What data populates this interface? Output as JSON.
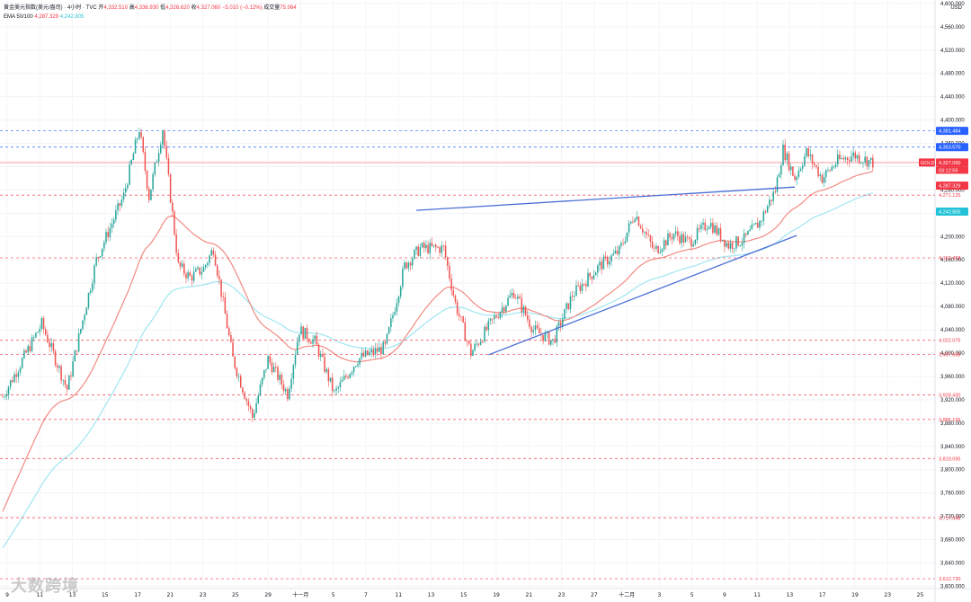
{
  "legend": {
    "instrument": "黄金美元指数(美元/盎司) · 4小时 · TVC",
    "open_label": "开",
    "open": "4,332.510",
    "high_label": "高",
    "high": "4,336.930",
    "low_label": "低",
    "low": "4,326.620",
    "close_label": "收",
    "close": "4,327.060",
    "change": "−5.010 (−0.12%)",
    "volume_label": "成交量",
    "volume": "75.064",
    "ema_label": "EMA 50/100",
    "ema50": "4,287.329",
    "ema100": "4,242.805"
  },
  "currency": "USD",
  "watermark": "大数跨境",
  "colors": {
    "up": "#26a69a",
    "down": "#ef5350",
    "ema50": "#f28b82",
    "ema100": "#9fe6f0",
    "trendline": "#4a6fd6",
    "support": "#f23645",
    "resistance": "#2962ff",
    "axis_text": "#131722"
  },
  "chart_data": {
    "type": "candlestick",
    "title": "",
    "ylim": [
      3596,
      4606
    ],
    "y_ticks": [
      "4,600.000",
      "4,560.000",
      "4,520.000",
      "4,480.000",
      "4,440.000",
      "4,400.000",
      "4,360.000",
      "4,320.000",
      "4,280.000",
      "4,240.000",
      "4,200.000",
      "4,160.000",
      "4,120.000",
      "4,080.000",
      "4,040.000",
      "4,000.000",
      "3,960.000",
      "3,920.000",
      "3,880.000",
      "3,840.000",
      "3,800.000",
      "3,760.000",
      "3,720.000",
      "3,680.000",
      "3,640.000",
      "3,600.000"
    ],
    "y_tick_values": [
      4600,
      4560,
      4520,
      4480,
      4440,
      4400,
      4360,
      4320,
      4280,
      4240,
      4200,
      4160,
      4120,
      4080,
      4040,
      4000,
      3960,
      3920,
      3880,
      3840,
      3800,
      3760,
      3720,
      3680,
      3640,
      3600
    ],
    "x_ticks": [
      "9",
      "11",
      "13",
      "15",
      "17",
      "21",
      "23",
      "25",
      "29",
      "十一月",
      "5",
      "7",
      "11",
      "13",
      "15",
      "19",
      "21",
      "23",
      "27",
      "十二月",
      "3",
      "5",
      "9",
      "11",
      "13",
      "17",
      "19",
      "23",
      "25"
    ],
    "price_markers": [
      {
        "label": "GOLD",
        "value": 4327.06,
        "text": "4,327.060",
        "sub": "03:12:59",
        "kind": "current"
      },
      {
        "label": "",
        "value": 4381.484,
        "text": "4,381.484",
        "kind": "resistance"
      },
      {
        "label": "",
        "value": 4353.57,
        "text": "4,353.570",
        "kind": "resistance"
      },
      {
        "label": "",
        "value": 4287.329,
        "text": "4,287.329",
        "kind": "ema50"
      },
      {
        "label": "",
        "value": 4271.125,
        "text": "4,271.125",
        "kind": "support"
      },
      {
        "label": "",
        "value": 4242.805,
        "text": "4,242.805",
        "kind": "ema100"
      },
      {
        "label": "",
        "value": 4163.458,
        "text": "4,163.458",
        "kind": "support"
      },
      {
        "label": "",
        "value": 4022.075,
        "text": "4,022.075",
        "kind": "support"
      },
      {
        "label": "",
        "value": 3997.658,
        "text": "3,997.658",
        "kind": "support"
      },
      {
        "label": "",
        "value": 3928.43,
        "text": "3,928.430",
        "kind": "support"
      },
      {
        "label": "",
        "value": 3886.199,
        "text": "3,886.199",
        "kind": "support"
      },
      {
        "label": "",
        "value": 3819.095,
        "text": "3,819.095",
        "kind": "support"
      },
      {
        "label": "",
        "value": 3717.348,
        "text": "3,717.348",
        "kind": "support"
      },
      {
        "label": "",
        "value": 3612.73,
        "text": "3,612.730",
        "kind": "support"
      }
    ],
    "trendlines": [
      {
        "name": "upper",
        "from": [
          212,
          4245
        ],
        "to": [
          406,
          4285
        ]
      },
      {
        "name": "lower",
        "from": [
          249,
          3997
        ],
        "to": [
          407,
          4202
        ]
      }
    ],
    "anchors": [
      [
        0,
        3925
      ],
      [
        20,
        4050
      ],
      [
        33,
        3938
      ],
      [
        48,
        4160
      ],
      [
        62,
        4270
      ],
      [
        70,
        4385
      ],
      [
        75,
        4268
      ],
      [
        82,
        4385
      ],
      [
        90,
        4150
      ],
      [
        96,
        4130
      ],
      [
        103,
        4145
      ],
      [
        108,
        4180
      ],
      [
        118,
        3990
      ],
      [
        128,
        3890
      ],
      [
        136,
        3990
      ],
      [
        146,
        3930
      ],
      [
        152,
        4040
      ],
      [
        160,
        4020
      ],
      [
        170,
        3930
      ],
      [
        182,
        3990
      ],
      [
        196,
        4010
      ],
      [
        206,
        4150
      ],
      [
        214,
        4180
      ],
      [
        226,
        4180
      ],
      [
        232,
        4085
      ],
      [
        240,
        4000
      ],
      [
        252,
        4060
      ],
      [
        262,
        4105
      ],
      [
        272,
        4040
      ],
      [
        282,
        4020
      ],
      [
        292,
        4100
      ],
      [
        306,
        4150
      ],
      [
        316,
        4175
      ],
      [
        324,
        4240
      ],
      [
        334,
        4175
      ],
      [
        344,
        4205
      ],
      [
        352,
        4190
      ],
      [
        362,
        4225
      ],
      [
        372,
        4185
      ],
      [
        380,
        4195
      ],
      [
        388,
        4225
      ],
      [
        396,
        4280
      ],
      [
        400,
        4350
      ],
      [
        406,
        4300
      ],
      [
        412,
        4345
      ],
      [
        420,
        4300
      ],
      [
        428,
        4330
      ],
      [
        436,
        4340
      ],
      [
        446,
        4327
      ]
    ],
    "candle_count": 447,
    "ema_periods": [
      50,
      100
    ]
  }
}
